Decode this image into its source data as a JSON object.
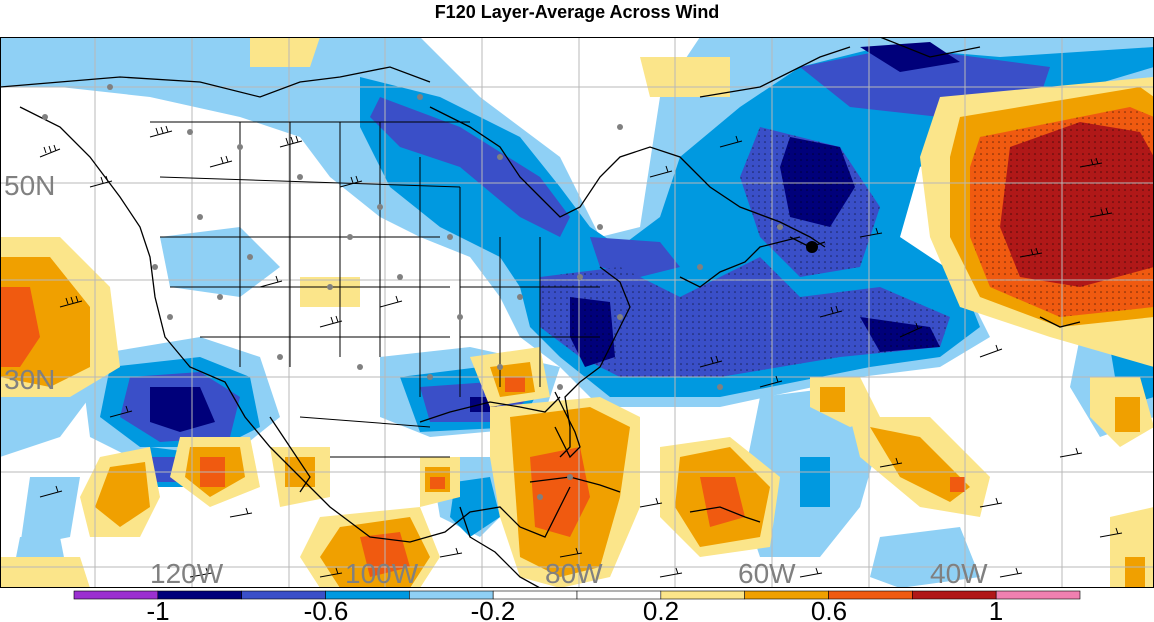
{
  "title": "F120 Layer-Average Across Wind",
  "lat_labels": [
    "50N",
    "30N"
  ],
  "lon_labels": [
    "120W",
    "100W",
    "80W",
    "60W",
    "40W"
  ],
  "colorbar": {
    "colors": [
      "#9b30d0",
      "#00007a",
      "#3a4fc8",
      "#0099e0",
      "#8fd0f5",
      "#ffffff",
      "#ffffff",
      "#fbe58a",
      "#f0a000",
      "#f05a10",
      "#b01818",
      "#f080b0"
    ],
    "labels": [
      "-1",
      "-0.6",
      "-0.2",
      "0.2",
      "0.6",
      "1"
    ]
  },
  "colors": {
    "land_outline": "#000000",
    "grid": "#b8b8b8",
    "station_dot": "#808080",
    "axis_label": "#808080"
  }
}
